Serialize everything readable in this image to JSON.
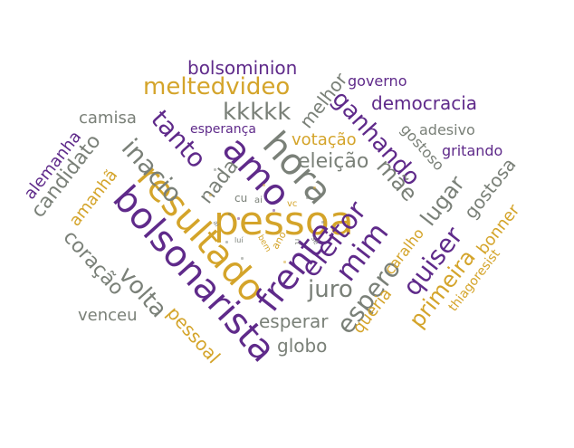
{
  "colors": {
    "purple": "#5f2a8a",
    "gold": "#d4a42a",
    "gray": "#7a8078"
  },
  "words": [
    {
      "text": "pessoa",
      "color": "gold"
    },
    {
      "text": "resultado",
      "color": "gold"
    },
    {
      "text": "bolsonarista",
      "color": "purple"
    },
    {
      "text": "hora",
      "color": "gray"
    },
    {
      "text": "amo",
      "color": "purple"
    },
    {
      "text": "frente",
      "color": "purple"
    },
    {
      "text": "eleitor",
      "color": "purple"
    },
    {
      "text": "mim",
      "color": "purple"
    },
    {
      "text": "espero",
      "color": "gray"
    },
    {
      "text": "quiser",
      "color": "purple"
    },
    {
      "text": "primeira",
      "color": "gold"
    },
    {
      "text": "volta",
      "color": "gray"
    },
    {
      "text": "inacio",
      "color": "gray"
    },
    {
      "text": "tanto",
      "color": "purple"
    },
    {
      "text": "ganhando",
      "color": "purple"
    },
    {
      "text": "meltedvideo",
      "color": "gold"
    },
    {
      "text": "kkkkk",
      "color": "gray"
    },
    {
      "text": "bolsominion",
      "color": "purple"
    },
    {
      "text": "juro",
      "color": "gray"
    },
    {
      "text": "lugar",
      "color": "gray"
    },
    {
      "text": "mãe",
      "color": "gray"
    },
    {
      "text": "eleição",
      "color": "gray"
    },
    {
      "text": "votação",
      "color": "gold"
    },
    {
      "text": "democracia",
      "color": "purple"
    },
    {
      "text": "candidato",
      "color": "gray"
    },
    {
      "text": "coração",
      "color": "gray"
    },
    {
      "text": "esperar",
      "color": "gray"
    },
    {
      "text": "globo",
      "color": "gray"
    },
    {
      "text": "venceu",
      "color": "gray"
    },
    {
      "text": "camisa",
      "color": "gray"
    },
    {
      "text": "nada",
      "color": "gray"
    },
    {
      "text": "pessoal",
      "color": "gold"
    },
    {
      "text": "gostosa",
      "color": "gray"
    },
    {
      "text": "melhor",
      "color": "gray"
    },
    {
      "text": "governo",
      "color": "purple"
    },
    {
      "text": "adesivo",
      "color": "gray"
    },
    {
      "text": "gritando",
      "color": "purple"
    },
    {
      "text": "gostoso",
      "color": "gray"
    },
    {
      "text": "bonner",
      "color": "gold"
    },
    {
      "text": "caralho",
      "color": "gold"
    },
    {
      "text": "queria",
      "color": "gold"
    },
    {
      "text": "amanhã",
      "color": "gold"
    },
    {
      "text": "alemanha",
      "color": "purple"
    },
    {
      "text": "esperança",
      "color": "purple"
    },
    {
      "text": "thiagoresist",
      "color": "gold"
    },
    {
      "text": "vc",
      "color": "gold"
    },
    {
      "text": "cu",
      "color": "gray"
    },
    {
      "text": "ai",
      "color": "gray"
    },
    {
      "text": "ano",
      "color": "gold"
    },
    {
      "text": "luí",
      "color": "gray"
    },
    {
      "text": "bem",
      "color": "gold"
    },
    {
      "text": "sé",
      "color": "gray"
    },
    {
      "text": "rt",
      "color": "gray"
    },
    {
      "text": "ai",
      "color": "gray"
    }
  ]
}
